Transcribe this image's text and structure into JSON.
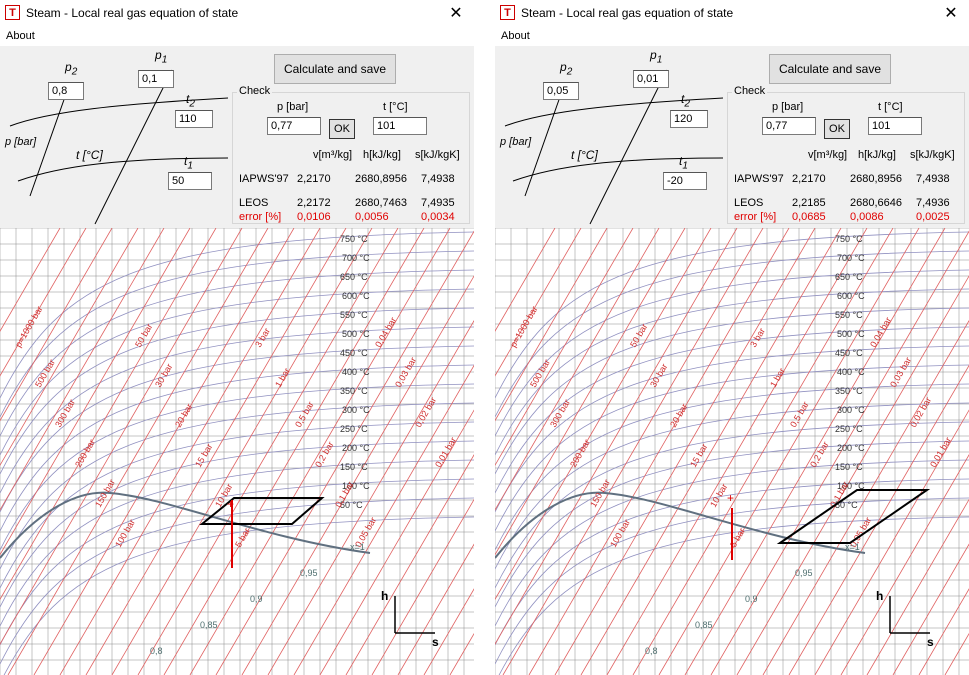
{
  "windows": [
    {
      "title": "Steam - Local real gas equation of state",
      "icon": "T",
      "close": "✕",
      "menu": "About",
      "calc_label": "Calculate and save",
      "diagram": {
        "p2_label": "p",
        "p2_sub": "2",
        "p1_label": "p",
        "p1_sub": "1",
        "t2_label": "t",
        "t2_sub": "2",
        "t1_label": "t",
        "t1_sub": "1",
        "p_axis": "p [bar]",
        "t_axis": "t [°C]",
        "p2": "0,8",
        "p1": "0,1",
        "t2": "110",
        "t1": "50"
      },
      "check": {
        "title": "Check",
        "p_label": "p [bar]",
        "t_label": "t [°C]",
        "p_value": "0,77",
        "t_value": "101",
        "ok": "OK",
        "headers": [
          "v[m³/kg]",
          "h[kJ/kg]",
          "s[kJ/kgK]"
        ],
        "rows": [
          {
            "name": "IAPWS'97",
            "v": "2,2170",
            "h": "2680,8956",
            "s": "7,4938"
          },
          {
            "name": "LEOS",
            "v": "2,2172",
            "h": "2680,7463",
            "s": "7,4935"
          },
          {
            "name": "error [%]",
            "v": "0,0106",
            "h": "0,0056",
            "s": "0,0034"
          }
        ]
      }
    },
    {
      "title": "Steam - Local real gas equation of state",
      "icon": "T",
      "close": "✕",
      "menu": "About",
      "calc_label": "Calculate and save",
      "diagram": {
        "p2_label": "p",
        "p2_sub": "2",
        "p1_label": "p",
        "p1_sub": "1",
        "t2_label": "t",
        "t2_sub": "2",
        "t1_label": "t",
        "t1_sub": "1",
        "p_axis": "p [bar]",
        "t_axis": "t [°C]",
        "p2": "0,05",
        "p1": "0,01",
        "t2": "120",
        "t1": "-20"
      },
      "check": {
        "title": "Check",
        "p_label": "p [bar]",
        "t_label": "t [°C]",
        "p_value": "0,77",
        "t_value": "101",
        "ok": "OK",
        "headers": [
          "v[m³/kg]",
          "h[kJ/kg]",
          "s[kJ/kgK]"
        ],
        "rows": [
          {
            "name": "IAPWS'97",
            "v": "2,2170",
            "h": "2680,8956",
            "s": "7,4938"
          },
          {
            "name": "LEOS",
            "v": "2,2185",
            "h": "2680,6646",
            "s": "7,4936"
          },
          {
            "name": "error [%]",
            "v": "0,0685",
            "h": "0,0086",
            "s": "0,0025"
          }
        ]
      }
    }
  ],
  "mollier": {
    "temperature_labels": [
      "750 °C",
      "700 °C",
      "650 °C",
      "600 °C",
      "550 °C",
      "500 °C",
      "450 °C",
      "400 °C",
      "350 °C",
      "300 °C",
      "250 °C",
      "200 °C",
      "150 °C",
      "100 °C",
      "50 °C"
    ],
    "pressure_labels": [
      "p=1000 bar",
      "500 bar",
      "300 bar",
      "200 bar",
      "150 bar",
      "100 bar",
      "50 bar",
      "30 bar",
      "20 bar",
      "15 bar",
      "10 bar",
      "5 bar",
      "3 bar",
      "1 bar",
      "0,5 bar",
      "0,2 bar",
      "0,1 bar",
      "0,05 bar",
      "0,04 bar",
      "0,03 bar",
      "0,02 bar",
      "0,01 bar"
    ],
    "quality_labels": [
      "x=1",
      "0,95",
      "0,9",
      "0,85",
      "0,8"
    ],
    "axis_h": "h",
    "axis_s": "s",
    "colors": {
      "grid": "#8a8a8a",
      "isobar": "#e06060",
      "isotherm": "#9090c0",
      "saturation": "#607080",
      "marker": "#e00000"
    }
  }
}
